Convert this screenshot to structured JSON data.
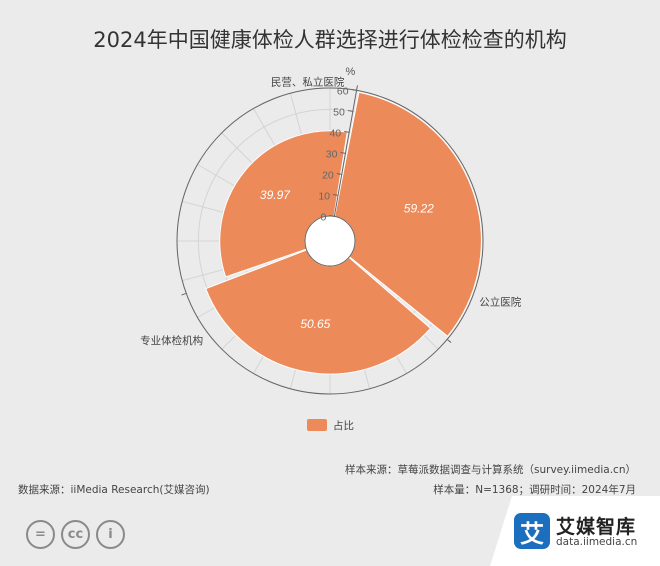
{
  "chart_data": {
    "type": "polar-bar",
    "title": "2024年中国健康体检人群选择进行体检检查的机构",
    "unit": "%",
    "categories": [
      "公立医院",
      "专业体检机构",
      "民营、私立医院"
    ],
    "series": [
      {
        "name": "占比",
        "values": [
          59.22,
          50.65,
          39.97
        ]
      }
    ],
    "radial_axis": {
      "range": [
        0,
        60
      ],
      "ticks": [
        0,
        10,
        20,
        30,
        40,
        50,
        60
      ]
    },
    "legend": "bottom-center",
    "colors": {
      "bar": "#ec8a5a",
      "bar_stroke": "#ffffff",
      "grid": "#d4d4d4",
      "axis": "#666666"
    }
  },
  "footer": {
    "sample_source": "样本来源：草莓派数据调查与计算系统（survey.iimedia.cn）",
    "data_source": "数据来源：iiMedia Research(艾媒咨询)",
    "sample_info": "样本量：N=1368；调研时间：2024年7月"
  },
  "license_icons": [
    "=",
    "cc",
    "i"
  ],
  "brand": {
    "logo_char": "艾",
    "name": "艾媒智库",
    "url": "data.iimedia.cn"
  }
}
